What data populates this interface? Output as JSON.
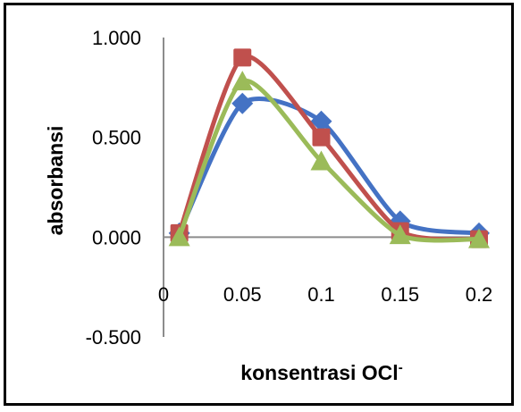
{
  "chart_data": {
    "type": "line",
    "title": "",
    "xlabel": "konsentrasi OCl",
    "xlabel_superscript": "-",
    "ylabel": "absorbansi",
    "xlim": [
      0,
      0.2
    ],
    "ylim": [
      -0.5,
      1.0
    ],
    "x_ticks": [
      "0",
      "0.05",
      "0.1",
      "0.15",
      "0.2"
    ],
    "y_ticks": [
      "1.000",
      "0.500",
      "0.000",
      "-0.500"
    ],
    "grid": false,
    "legend": "none",
    "smooth": true,
    "series": [
      {
        "color": "#4472C4",
        "marker": "diamond",
        "x": [
          0.01,
          0.05,
          0.1,
          0.15,
          0.2
        ],
        "y": [
          0.02,
          0.67,
          0.58,
          0.08,
          0.02
        ]
      },
      {
        "color": "#C0504D",
        "marker": "square",
        "x": [
          0.01,
          0.05,
          0.1,
          0.15,
          0.2
        ],
        "y": [
          0.02,
          0.9,
          0.5,
          0.03,
          -0.01
        ]
      },
      {
        "color": "#9BBB59",
        "marker": "triangle",
        "x": [
          0.01,
          0.05,
          0.1,
          0.15,
          0.2
        ],
        "y": [
          0.0,
          0.78,
          0.38,
          0.01,
          -0.01
        ]
      }
    ]
  }
}
